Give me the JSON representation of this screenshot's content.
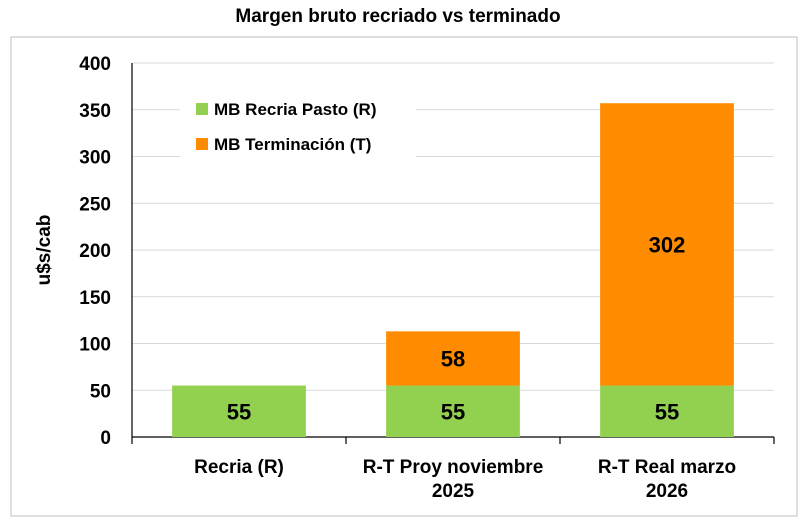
{
  "chart_data": {
    "type": "bar",
    "stacked": true,
    "title": "Margen bruto recriado vs terminado",
    "ylabel": "u$s/cab",
    "xlabel": "",
    "ylim": [
      0,
      400
    ],
    "yticks": [
      0,
      50,
      100,
      150,
      200,
      250,
      300,
      350,
      400
    ],
    "grid": "horizontal",
    "legend_position": "top-left",
    "categories": [
      [
        "Recria (R)"
      ],
      [
        "R-T Proy noviembre",
        "2025"
      ],
      [
        "R-T Real marzo",
        "2026"
      ]
    ],
    "series": [
      {
        "name": "MB Recria Pasto (R)",
        "color": "#92d050",
        "values": [
          55,
          55,
          55
        ],
        "labels": [
          "55",
          "55",
          "55"
        ]
      },
      {
        "name": "MB Terminación (T)",
        "color": "#ff8c00",
        "values": [
          null,
          58,
          302
        ],
        "labels": [
          "",
          "58",
          "302"
        ]
      }
    ]
  }
}
